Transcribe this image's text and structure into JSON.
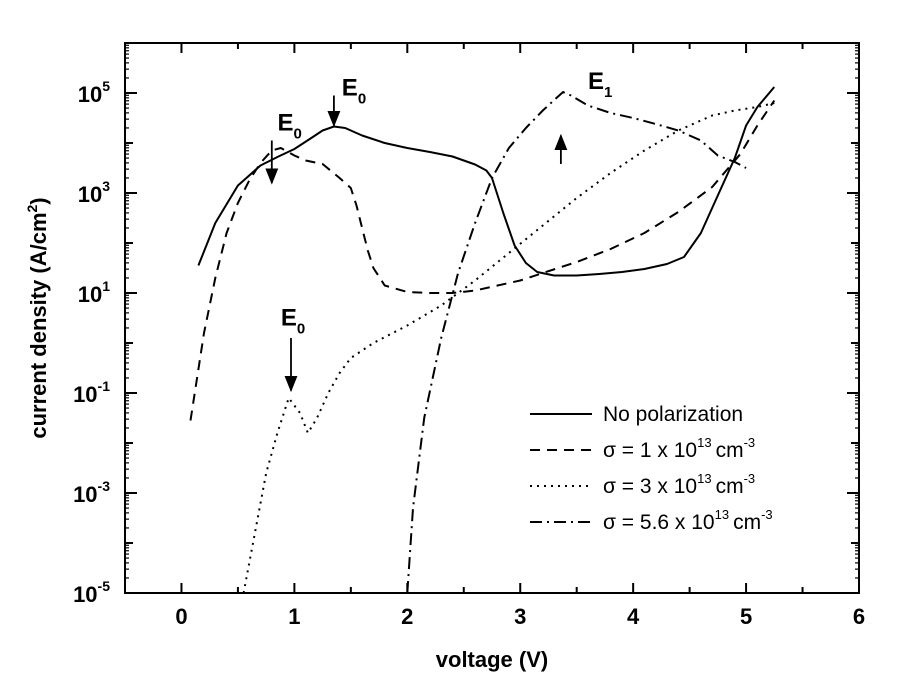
{
  "chart_data": {
    "type": "line",
    "title": "",
    "xlabel": "voltage (V)",
    "ylabel": "current density (A/cm²)",
    "ylabel_parts": {
      "main": "current density (A/cm",
      "sup": "2",
      "close": ")"
    },
    "xlim": [
      -0.5,
      6
    ],
    "ylim_log10": [
      -5,
      6
    ],
    "y_scale": "log",
    "grid": false,
    "legend_position": "lower-right",
    "x_ticks": [
      {
        "value": 0,
        "label": "0"
      },
      {
        "value": 1,
        "label": "1"
      },
      {
        "value": 2,
        "label": "2"
      },
      {
        "value": 3,
        "label": "3"
      },
      {
        "value": 4,
        "label": "4"
      },
      {
        "value": 5,
        "label": "5"
      },
      {
        "value": 6,
        "label": "6"
      }
    ],
    "y_ticks": [
      {
        "exp": 5,
        "base": "10",
        "sup": "5"
      },
      {
        "exp": 3,
        "base": "10",
        "sup": "3"
      },
      {
        "exp": 1,
        "base": "10",
        "sup": "1"
      },
      {
        "exp": -1,
        "base": "10",
        "sup": "-1"
      },
      {
        "exp": -3,
        "base": "10",
        "sup": "-3"
      },
      {
        "exp": -5,
        "base": "10",
        "sup": "-5"
      }
    ],
    "series": [
      {
        "name": "No polarization",
        "legend": {
          "main": "No polarization",
          "sup": "",
          "unit": "",
          "unit_sup": ""
        },
        "dash": "",
        "x": [
          0.15,
          0.3,
          0.5,
          0.7,
          0.85,
          1.0,
          1.15,
          1.25,
          1.35,
          1.45,
          1.6,
          1.8,
          2.0,
          2.2,
          2.4,
          2.6,
          2.7,
          2.75,
          2.85,
          2.95,
          3.05,
          3.15,
          3.3,
          3.5,
          3.7,
          3.9,
          4.1,
          4.3,
          4.45,
          4.6,
          4.75,
          4.9,
          5.0,
          5.1,
          5.25
        ],
        "log10_y": [
          1.55,
          2.4,
          3.15,
          3.55,
          3.72,
          3.88,
          4.1,
          4.25,
          4.33,
          4.3,
          4.15,
          4.0,
          3.9,
          3.82,
          3.73,
          3.57,
          3.45,
          3.3,
          2.6,
          1.95,
          1.6,
          1.42,
          1.35,
          1.35,
          1.38,
          1.42,
          1.48,
          1.58,
          1.72,
          2.2,
          2.95,
          3.7,
          4.35,
          4.72,
          5.12
        ]
      },
      {
        "name": "σ = 1 x 10¹³ cm⁻³",
        "legend": {
          "main": "σ = 1 x 10",
          "sup": "13",
          "unit": "cm",
          "unit_sup": "-3"
        },
        "dash": "10,7",
        "x": [
          0.08,
          0.2,
          0.3,
          0.4,
          0.5,
          0.6,
          0.7,
          0.8,
          0.88,
          1.0,
          1.1,
          1.25,
          1.4,
          1.5,
          1.55,
          1.6,
          1.65,
          1.7,
          1.8,
          2.0,
          2.2,
          2.4,
          2.6,
          2.8,
          3.0,
          3.2,
          3.5,
          3.8,
          4.1,
          4.4,
          4.7,
          4.95,
          5.1,
          5.25
        ],
        "log10_y": [
          -1.55,
          0.2,
          1.3,
          2.2,
          2.8,
          3.25,
          3.6,
          3.85,
          3.9,
          3.75,
          3.65,
          3.58,
          3.3,
          3.1,
          2.75,
          2.3,
          1.85,
          1.5,
          1.15,
          1.02,
          1.0,
          1.0,
          1.05,
          1.15,
          1.25,
          1.4,
          1.62,
          1.88,
          2.2,
          2.62,
          3.12,
          3.78,
          4.35,
          4.85
        ]
      },
      {
        "name": "σ = 3 x 10¹³ cm⁻³",
        "legend": {
          "main": "σ = 3 x 10",
          "sup": "13",
          "unit": "cm",
          "unit_sup": "-3"
        },
        "dash": "2,5",
        "x": [
          0.55,
          0.65,
          0.75,
          0.85,
          0.95,
          1.05,
          1.12,
          1.2,
          1.3,
          1.4,
          1.5,
          1.7,
          2.0,
          2.3,
          2.6,
          2.9,
          3.2,
          3.5,
          3.8,
          4.1,
          4.4,
          4.7,
          4.9,
          5.1,
          5.25
        ],
        "log10_y": [
          -5.0,
          -3.8,
          -2.6,
          -1.8,
          -1.1,
          -1.4,
          -1.8,
          -1.5,
          -1.0,
          -0.6,
          -0.3,
          0.0,
          0.35,
          0.75,
          1.25,
          1.8,
          2.35,
          2.9,
          3.4,
          3.85,
          4.25,
          4.55,
          4.65,
          4.72,
          4.8
        ]
      },
      {
        "name": "σ = 5.6 x 10¹³ cm⁻³",
        "legend": {
          "main": "σ = 5.6 x 10",
          "sup": "13",
          "unit": "cm",
          "unit_sup": "-3"
        },
        "dash": "12,5,2,5",
        "x": [
          2.0,
          2.05,
          2.15,
          2.3,
          2.45,
          2.6,
          2.75,
          2.9,
          3.05,
          3.2,
          3.32,
          3.38,
          3.45,
          3.6,
          3.8,
          4.0,
          4.2,
          4.4,
          4.6,
          4.75,
          4.9,
          5.0
        ],
        "log10_y": [
          -5.0,
          -3.3,
          -1.5,
          0.1,
          1.4,
          2.4,
          3.3,
          3.9,
          4.3,
          4.65,
          4.9,
          5.02,
          4.95,
          4.75,
          4.6,
          4.5,
          4.38,
          4.25,
          4.05,
          3.75,
          3.62,
          3.5
        ]
      }
    ],
    "annotations": [
      {
        "text": "E",
        "sub": "0",
        "arrow_x": 0.8,
        "arrow_from": 4.05,
        "arrow_to": 3.2,
        "text_x": 0.85,
        "text_y": 4.25,
        "direction": "down"
      },
      {
        "text": "E",
        "sub": "0",
        "arrow_x": 1.35,
        "arrow_from": 4.95,
        "arrow_to": 4.35,
        "text_x": 1.42,
        "text_y": 4.95,
        "direction": "down"
      },
      {
        "text": "E",
        "sub": "1",
        "arrow_x": 3.36,
        "arrow_from": 3.58,
        "arrow_to": 4.15,
        "text_x": 3.6,
        "text_y": 5.08,
        "direction": "up"
      },
      {
        "text": "E",
        "sub": "0",
        "arrow_x": 0.97,
        "arrow_from": 0.1,
        "arrow_to": -0.95,
        "text_x": 0.88,
        "text_y": 0.35,
        "direction": "down"
      }
    ]
  }
}
